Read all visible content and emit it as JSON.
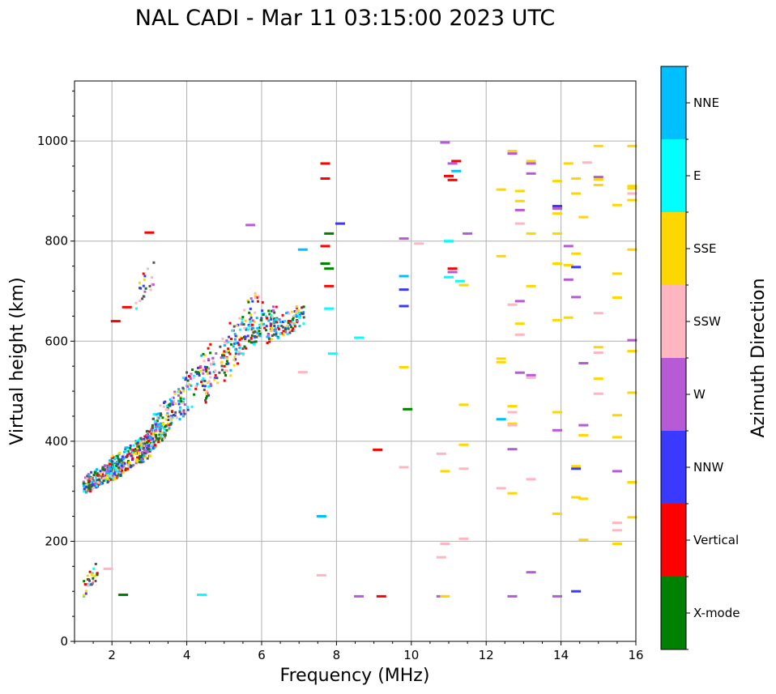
{
  "chart_data": {
    "type": "scatter",
    "title": "NAL CADI - Mar 11 03:15:00 2023 UTC",
    "xlabel": "Frequency (MHz)",
    "ylabel": "Virtual height (km)",
    "xlim": [
      1,
      16
    ],
    "ylim": [
      0,
      1120
    ],
    "grid": true,
    "x_ticks": [
      {
        "value": 2,
        "label": "2"
      },
      {
        "value": 4,
        "label": "4"
      },
      {
        "value": 6,
        "label": "6"
      },
      {
        "value": 8,
        "label": "8"
      },
      {
        "value": 10,
        "label": "10"
      },
      {
        "value": 12,
        "label": "12"
      },
      {
        "value": 14,
        "label": "14"
      },
      {
        "value": 16,
        "label": "16"
      }
    ],
    "y_ticks": [
      {
        "value": 0,
        "label": "0"
      },
      {
        "value": 200,
        "label": "200"
      },
      {
        "value": 400,
        "label": "400"
      },
      {
        "value": 600,
        "label": "600"
      },
      {
        "value": 800,
        "label": "800"
      },
      {
        "value": 1000,
        "label": "1000"
      }
    ],
    "colorbar": {
      "label": "Azimuth Direction",
      "categories": [
        {
          "name": "X-mode",
          "color": "#008000"
        },
        {
          "name": "Vertical",
          "color": "#ff0000"
        },
        {
          "name": "NNW",
          "color": "#3a3aff"
        },
        {
          "name": "W",
          "color": "#b65ad6"
        },
        {
          "name": "SSW",
          "color": "#ffb6c1"
        },
        {
          "name": "SSE",
          "color": "#ffd700"
        },
        {
          "name": "E",
          "color": "#00ffff"
        },
        {
          "name": "NNE",
          "color": "#00bfff"
        }
      ]
    },
    "cloud_palette": [
      "#ff0000",
      "#ffd700",
      "#00ffff",
      "#3a3aff",
      "#b65ad6",
      "#ffb6c1",
      "#008000",
      "#00bfff",
      "#555555"
    ],
    "clusters": [
      {
        "x": [
          1.2,
          2.2
        ],
        "y": [
          295,
          370
        ],
        "n": 260
      },
      {
        "x": [
          1.9,
          3.0
        ],
        "y": [
          320,
          420
        ],
        "n": 220
      },
      {
        "x": [
          2.6,
          3.4
        ],
        "y": [
          360,
          450
        ],
        "n": 150
      },
      {
        "x": [
          3.0,
          3.9
        ],
        "y": [
          390,
          520
        ],
        "n": 110
      },
      {
        "x": [
          3.7,
          4.6
        ],
        "y": [
          430,
          600
        ],
        "n": 70
      },
      {
        "x": [
          4.4,
          5.4
        ],
        "y": [
          470,
          640
        ],
        "n": 80
      },
      {
        "x": [
          4.9,
          6.0
        ],
        "y": [
          520,
          720
        ],
        "n": 90
      },
      {
        "x": [
          5.5,
          6.4
        ],
        "y": [
          580,
          680
        ],
        "n": 70
      },
      {
        "x": [
          6.1,
          7.1
        ],
        "y": [
          590,
          680
        ],
        "n": 110
      },
      {
        "x": [
          2.6,
          3.1
        ],
        "y": [
          660,
          770
        ],
        "n": 22
      },
      {
        "x": [
          1.2,
          1.6
        ],
        "y": [
          88,
          165
        ],
        "n": 30
      }
    ],
    "points": [
      {
        "x": 7.7,
        "y": 955,
        "s": "Vertical"
      },
      {
        "x": 7.7,
        "y": 925,
        "s": "Vertical"
      },
      {
        "x": 8.1,
        "y": 835,
        "s": "NNW"
      },
      {
        "x": 7.8,
        "y": 815,
        "s": "X-mode"
      },
      {
        "x": 7.7,
        "y": 790,
        "s": "Vertical"
      },
      {
        "x": 7.7,
        "y": 755,
        "s": "X-mode"
      },
      {
        "x": 7.8,
        "y": 745,
        "s": "X-mode"
      },
      {
        "x": 7.8,
        "y": 710,
        "s": "Vertical"
      },
      {
        "x": 7.8,
        "y": 665,
        "s": "E"
      },
      {
        "x": 7.9,
        "y": 575,
        "s": "E"
      },
      {
        "x": 8.6,
        "y": 607,
        "s": "E"
      },
      {
        "x": 7.6,
        "y": 250,
        "s": "NNE"
      },
      {
        "x": 7.6,
        "y": 132,
        "s": "SSW"
      },
      {
        "x": 8.6,
        "y": 90,
        "s": "W"
      },
      {
        "x": 9.2,
        "y": 90,
        "s": "Vertical"
      },
      {
        "x": 9.1,
        "y": 383,
        "s": "Vertical"
      },
      {
        "x": 9.8,
        "y": 805,
        "s": "W"
      },
      {
        "x": 9.8,
        "y": 730,
        "s": "NNE"
      },
      {
        "x": 9.8,
        "y": 703,
        "s": "NNW"
      },
      {
        "x": 9.8,
        "y": 670,
        "s": "NNW"
      },
      {
        "x": 9.8,
        "y": 548,
        "s": "SSE"
      },
      {
        "x": 9.8,
        "y": 348,
        "s": "SSW"
      },
      {
        "x": 9.9,
        "y": 464,
        "s": "X-mode"
      },
      {
        "x": 10.2,
        "y": 795,
        "s": "SSW"
      },
      {
        "x": 10.8,
        "y": 90,
        "s": "W"
      },
      {
        "x": 10.9,
        "y": 90,
        "s": "SSE"
      },
      {
        "x": 10.9,
        "y": 997,
        "s": "W"
      },
      {
        "x": 11.2,
        "y": 960,
        "s": "Vertical"
      },
      {
        "x": 11.1,
        "y": 955,
        "s": "W"
      },
      {
        "x": 11.2,
        "y": 940,
        "s": "NNE"
      },
      {
        "x": 11.0,
        "y": 930,
        "s": "Vertical"
      },
      {
        "x": 11.1,
        "y": 922,
        "s": "Vertical"
      },
      {
        "x": 11.5,
        "y": 815,
        "s": "W"
      },
      {
        "x": 11.0,
        "y": 800,
        "s": "E"
      },
      {
        "x": 11.1,
        "y": 745,
        "s": "Vertical"
      },
      {
        "x": 11.1,
        "y": 738,
        "s": "W"
      },
      {
        "x": 11.0,
        "y": 728,
        "s": "E"
      },
      {
        "x": 11.3,
        "y": 720,
        "s": "E"
      },
      {
        "x": 11.4,
        "y": 712,
        "s": "SSE"
      },
      {
        "x": 11.4,
        "y": 473,
        "s": "SSE"
      },
      {
        "x": 11.4,
        "y": 393,
        "s": "SSE"
      },
      {
        "x": 10.8,
        "y": 375,
        "s": "SSW"
      },
      {
        "x": 11.4,
        "y": 345,
        "s": "SSW"
      },
      {
        "x": 10.9,
        "y": 340,
        "s": "SSE"
      },
      {
        "x": 11.4,
        "y": 205,
        "s": "SSW"
      },
      {
        "x": 10.9,
        "y": 195,
        "s": "SSW"
      },
      {
        "x": 10.8,
        "y": 168,
        "s": "SSW"
      },
      {
        "x": 12.7,
        "y": 980,
        "s": "SSE"
      },
      {
        "x": 12.7,
        "y": 975,
        "s": "W"
      },
      {
        "x": 13.2,
        "y": 960,
        "s": "SSE"
      },
      {
        "x": 13.2,
        "y": 955,
        "s": "W"
      },
      {
        "x": 13.2,
        "y": 935,
        "s": "W"
      },
      {
        "x": 12.4,
        "y": 903,
        "s": "SSE"
      },
      {
        "x": 12.9,
        "y": 900,
        "s": "SSE"
      },
      {
        "x": 12.9,
        "y": 880,
        "s": "SSE"
      },
      {
        "x": 12.9,
        "y": 862,
        "s": "W"
      },
      {
        "x": 12.9,
        "y": 835,
        "s": "SSW"
      },
      {
        "x": 13.2,
        "y": 815,
        "s": "SSE"
      },
      {
        "x": 12.4,
        "y": 770,
        "s": "SSE"
      },
      {
        "x": 13.2,
        "y": 710,
        "s": "SSE"
      },
      {
        "x": 12.9,
        "y": 680,
        "s": "W"
      },
      {
        "x": 12.7,
        "y": 673,
        "s": "SSW"
      },
      {
        "x": 12.9,
        "y": 635,
        "s": "SSE"
      },
      {
        "x": 12.9,
        "y": 613,
        "s": "SSW"
      },
      {
        "x": 12.4,
        "y": 565,
        "s": "SSE"
      },
      {
        "x": 12.4,
        "y": 558,
        "s": "SSE"
      },
      {
        "x": 12.9,
        "y": 537,
        "s": "W"
      },
      {
        "x": 13.2,
        "y": 532,
        "s": "W"
      },
      {
        "x": 13.2,
        "y": 527,
        "s": "SSW"
      },
      {
        "x": 12.7,
        "y": 470,
        "s": "SSE"
      },
      {
        "x": 12.7,
        "y": 458,
        "s": "SSW"
      },
      {
        "x": 12.4,
        "y": 444,
        "s": "NNE"
      },
      {
        "x": 12.7,
        "y": 435,
        "s": "SSE"
      },
      {
        "x": 12.7,
        "y": 432,
        "s": "SSW"
      },
      {
        "x": 12.7,
        "y": 384,
        "s": "W"
      },
      {
        "x": 13.2,
        "y": 324,
        "s": "SSW"
      },
      {
        "x": 12.4,
        "y": 306,
        "s": "SSW"
      },
      {
        "x": 12.7,
        "y": 296,
        "s": "SSE"
      },
      {
        "x": 13.2,
        "y": 138,
        "s": "W"
      },
      {
        "x": 12.7,
        "y": 90,
        "s": "W"
      },
      {
        "x": 13.9,
        "y": 920,
        "s": "SSE"
      },
      {
        "x": 14.2,
        "y": 955,
        "s": "SSE"
      },
      {
        "x": 14.4,
        "y": 925,
        "s": "SSE"
      },
      {
        "x": 14.7,
        "y": 957,
        "s": "SSW"
      },
      {
        "x": 15.0,
        "y": 990,
        "s": "SSE"
      },
      {
        "x": 15.0,
        "y": 928,
        "s": "W"
      },
      {
        "x": 15.0,
        "y": 923,
        "s": "SSE"
      },
      {
        "x": 15.0,
        "y": 912,
        "s": "SSE"
      },
      {
        "x": 14.4,
        "y": 895,
        "s": "SSE"
      },
      {
        "x": 13.9,
        "y": 870,
        "s": "NNW"
      },
      {
        "x": 13.9,
        "y": 865,
        "s": "W"
      },
      {
        "x": 13.9,
        "y": 855,
        "s": "SSE"
      },
      {
        "x": 14.6,
        "y": 848,
        "s": "SSE"
      },
      {
        "x": 13.9,
        "y": 815,
        "s": "SSE"
      },
      {
        "x": 14.2,
        "y": 790,
        "s": "W"
      },
      {
        "x": 14.4,
        "y": 775,
        "s": "SSE"
      },
      {
        "x": 13.9,
        "y": 755,
        "s": "SSE"
      },
      {
        "x": 14.2,
        "y": 752,
        "s": "SSE"
      },
      {
        "x": 14.4,
        "y": 748,
        "s": "NNW"
      },
      {
        "x": 14.2,
        "y": 723,
        "s": "W"
      },
      {
        "x": 14.4,
        "y": 688,
        "s": "W"
      },
      {
        "x": 15.0,
        "y": 656,
        "s": "SSW"
      },
      {
        "x": 14.2,
        "y": 647,
        "s": "SSE"
      },
      {
        "x": 13.9,
        "y": 642,
        "s": "SSE"
      },
      {
        "x": 15.0,
        "y": 588,
        "s": "SSE"
      },
      {
        "x": 15.0,
        "y": 577,
        "s": "SSW"
      },
      {
        "x": 14.6,
        "y": 556,
        "s": "W"
      },
      {
        "x": 15.0,
        "y": 525,
        "s": "SSE"
      },
      {
        "x": 15.0,
        "y": 495,
        "s": "SSW"
      },
      {
        "x": 13.9,
        "y": 458,
        "s": "SSE"
      },
      {
        "x": 15.5,
        "y": 452,
        "s": "SSE"
      },
      {
        "x": 14.6,
        "y": 432,
        "s": "W"
      },
      {
        "x": 13.9,
        "y": 422,
        "s": "W"
      },
      {
        "x": 14.6,
        "y": 412,
        "s": "SSE"
      },
      {
        "x": 15.5,
        "y": 408,
        "s": "SSE"
      },
      {
        "x": 14.4,
        "y": 350,
        "s": "SSE"
      },
      {
        "x": 14.4,
        "y": 345,
        "s": "NNW"
      },
      {
        "x": 15.5,
        "y": 340,
        "s": "W"
      },
      {
        "x": 14.4,
        "y": 288,
        "s": "SSE"
      },
      {
        "x": 14.6,
        "y": 285,
        "s": "SSE"
      },
      {
        "x": 13.9,
        "y": 255,
        "s": "SSE"
      },
      {
        "x": 15.5,
        "y": 237,
        "s": "SSW"
      },
      {
        "x": 15.5,
        "y": 222,
        "s": "SSW"
      },
      {
        "x": 14.6,
        "y": 203,
        "s": "SSE"
      },
      {
        "x": 15.5,
        "y": 195,
        "s": "SSE"
      },
      {
        "x": 14.4,
        "y": 100,
        "s": "NNW"
      },
      {
        "x": 13.9,
        "y": 90,
        "s": "W"
      },
      {
        "x": 15.5,
        "y": 872,
        "s": "SSE"
      },
      {
        "x": 15.9,
        "y": 990,
        "s": "SSE"
      },
      {
        "x": 15.9,
        "y": 910,
        "s": "SSE"
      },
      {
        "x": 15.9,
        "y": 905,
        "s": "SSE"
      },
      {
        "x": 15.9,
        "y": 895,
        "s": "SSW"
      },
      {
        "x": 15.9,
        "y": 882,
        "s": "SSE"
      },
      {
        "x": 15.9,
        "y": 783,
        "s": "SSE"
      },
      {
        "x": 15.5,
        "y": 735,
        "s": "SSE"
      },
      {
        "x": 15.5,
        "y": 687,
        "s": "SSE"
      },
      {
        "x": 15.9,
        "y": 602,
        "s": "W"
      },
      {
        "x": 15.9,
        "y": 580,
        "s": "SSE"
      },
      {
        "x": 15.9,
        "y": 497,
        "s": "SSE"
      },
      {
        "x": 15.9,
        "y": 318,
        "s": "SSE"
      },
      {
        "x": 15.9,
        "y": 248,
        "s": "SSE"
      },
      {
        "x": 2.3,
        "y": 93,
        "s": "X-mode"
      },
      {
        "x": 4.4,
        "y": 93,
        "s": "E"
      },
      {
        "x": 3.0,
        "y": 817,
        "s": "Vertical"
      },
      {
        "x": 2.1,
        "y": 640,
        "s": "Vertical"
      },
      {
        "x": 2.4,
        "y": 668,
        "s": "Vertical"
      },
      {
        "x": 5.7,
        "y": 832,
        "s": "W"
      },
      {
        "x": 7.1,
        "y": 783,
        "s": "NNE"
      },
      {
        "x": 7.1,
        "y": 538,
        "s": "SSW"
      },
      {
        "x": 1.9,
        "y": 145,
        "s": "SSW"
      }
    ]
  }
}
